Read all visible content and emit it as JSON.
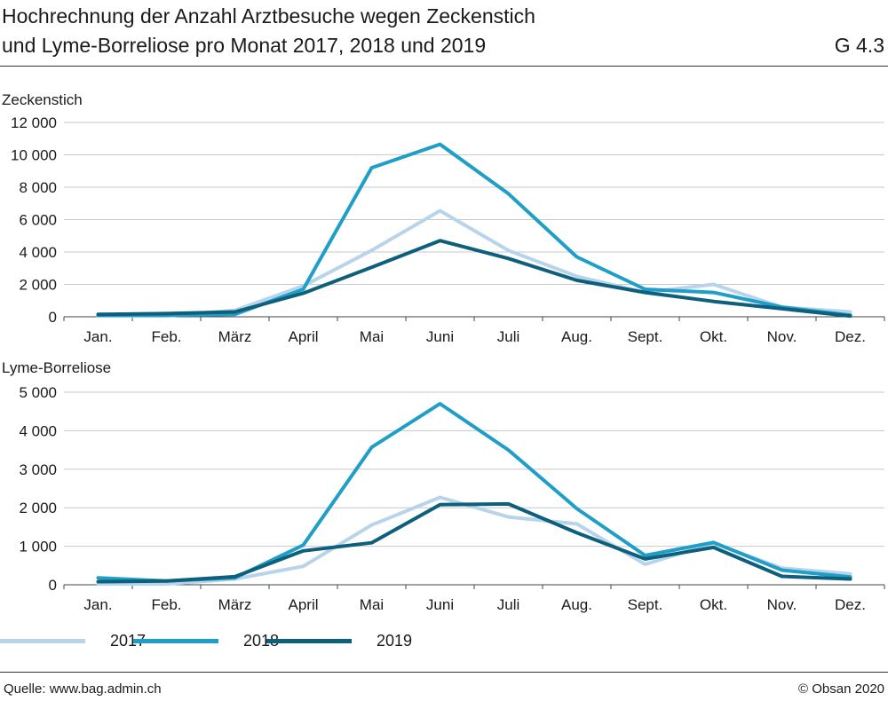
{
  "header": {
    "title_line1": "Hochrechnung der Anzahl Arztbesuche wegen Zeckenstich",
    "title_line2": "und Lyme-Borreliose pro Monat 2017, 2018 und 2019",
    "figure_number": "G 4.3"
  },
  "legend": [
    {
      "label": "2017",
      "color": "#b8d4ea"
    },
    {
      "label": "2018",
      "color": "#1f9ec8"
    },
    {
      "label": "2019",
      "color": "#0d5f7c"
    }
  ],
  "footer": {
    "source": "Quelle: www.bag.admin.ch",
    "copyright": "© Obsan 2020"
  },
  "chart_data": [
    {
      "type": "line",
      "title": "Zeckenstich",
      "categories": [
        "Jan.",
        "Feb.",
        "März",
        "April",
        "Mai",
        "Juni",
        "Juli",
        "Aug.",
        "Sept.",
        "Okt.",
        "Nov.",
        "Dez."
      ],
      "ylim": [
        0,
        12000
      ],
      "yticks": [
        0,
        2000,
        4000,
        6000,
        8000,
        10000,
        12000
      ],
      "ytick_labels": [
        "0",
        "2 000",
        "4 000",
        "6 000",
        "8 000",
        "10 000",
        "12 000"
      ],
      "series": [
        {
          "name": "2017",
          "color": "#b8d4ea",
          "values": [
            50,
            50,
            400,
            1900,
            4100,
            6550,
            4100,
            2500,
            1500,
            2000,
            600,
            300
          ]
        },
        {
          "name": "2018",
          "color": "#1f9ec8",
          "values": [
            100,
            100,
            150,
            1700,
            9200,
            10650,
            7600,
            3700,
            1700,
            1500,
            600,
            100
          ]
        },
        {
          "name": "2019",
          "color": "#0d5f7c",
          "values": [
            150,
            200,
            300,
            1450,
            3050,
            4700,
            3600,
            2250,
            1500,
            950,
            500,
            50
          ]
        }
      ],
      "grid": true
    },
    {
      "type": "line",
      "title": "Lyme-Borreliose",
      "categories": [
        "Jan.",
        "Feb.",
        "März",
        "April",
        "Mai",
        "Juni",
        "Juli",
        "Aug.",
        "Sept.",
        "Okt.",
        "Nov.",
        "Dez."
      ],
      "ylim": [
        0,
        5000
      ],
      "yticks": [
        0,
        1000,
        2000,
        3000,
        4000,
        5000
      ],
      "ytick_labels": [
        "0",
        "1 000",
        "2 000",
        "3 000",
        "4 000",
        "5 000"
      ],
      "series": [
        {
          "name": "2017",
          "color": "#b8d4ea",
          "values": [
            20,
            20,
            150,
            480,
            1550,
            2270,
            1760,
            1580,
            530,
            1080,
            430,
            280
          ]
        },
        {
          "name": "2018",
          "color": "#1f9ec8",
          "values": [
            180,
            100,
            180,
            1030,
            3570,
            4700,
            3500,
            1980,
            760,
            1100,
            380,
            200
          ]
        },
        {
          "name": "2019",
          "color": "#0d5f7c",
          "values": [
            80,
            100,
            210,
            880,
            1090,
            2080,
            2100,
            1350,
            670,
            970,
            220,
            150
          ]
        }
      ],
      "grid": true
    }
  ]
}
